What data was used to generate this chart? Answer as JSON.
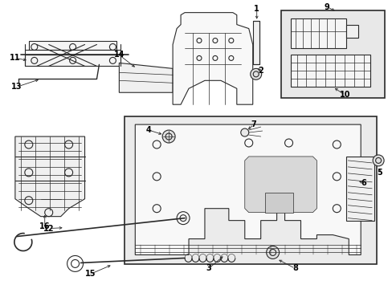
{
  "background": "#ffffff",
  "line_color": "#2a2a2a",
  "box_bg": "#e0e0e0",
  "fig_width": 4.89,
  "fig_height": 3.6,
  "dpi": 100
}
